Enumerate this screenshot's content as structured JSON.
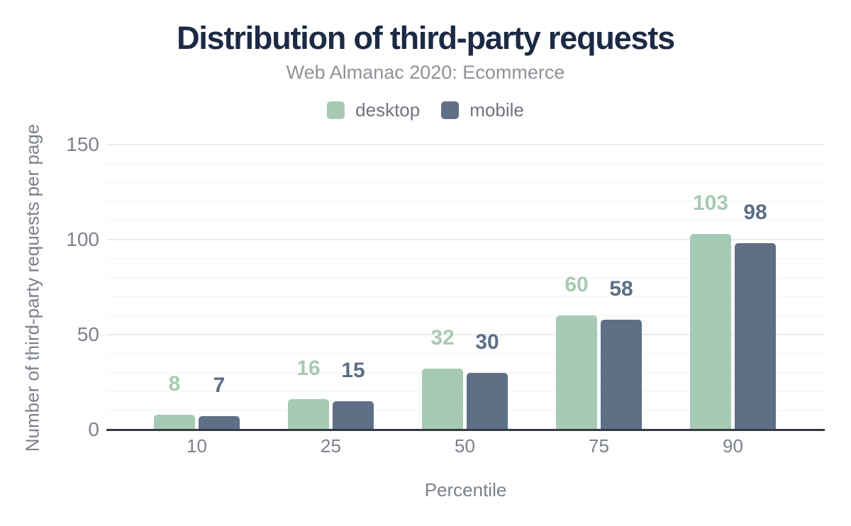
{
  "chart_data": {
    "type": "bar",
    "title": "Distribution of third-party requests",
    "subtitle": "Web Almanac 2020: Ecommerce",
    "xlabel": "Percentile",
    "ylabel": "Number of third-party requests per page",
    "categories": [
      "10",
      "25",
      "50",
      "75",
      "90"
    ],
    "series": [
      {
        "name": "desktop",
        "color": "#a7cab4",
        "label_color": "#a7cab4",
        "values": [
          8,
          16,
          32,
          60,
          103
        ]
      },
      {
        "name": "mobile",
        "color": "#5f7086",
        "label_color": "#5c6e86",
        "values": [
          7,
          15,
          30,
          58,
          98
        ]
      }
    ],
    "yticks": [
      0,
      50,
      100,
      150
    ],
    "ylim": [
      0,
      150
    ],
    "minor_grid_step": 10,
    "major_grid_step": 50,
    "grid": true,
    "legend_position": "top",
    "bar_value_labels": true
  },
  "colors": {
    "title": "#1c2a45",
    "subtitle": "#8e9297",
    "axis_text": "#7c818a",
    "legend_text": "#6f747c",
    "desktop": "#a7cab4",
    "mobile": "#5f7086",
    "grid_major": "#ececec",
    "grid_minor": "#f8f8f8",
    "axis_line": "#333a42",
    "background": "#ffffff"
  }
}
